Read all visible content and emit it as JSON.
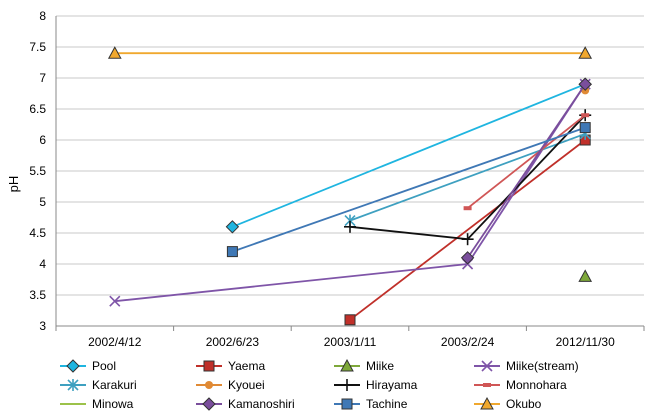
{
  "chart_data": {
    "type": "line",
    "title": "",
    "xlabel": "",
    "ylabel": "pH",
    "ylim": [
      3,
      8
    ],
    "yticks": [
      "3",
      "3.5",
      "4",
      "4.5",
      "5",
      "5.5",
      "6",
      "6.5",
      "7",
      "7.5",
      "8"
    ],
    "categories": [
      "2002/4/12",
      "2002/6/23",
      "2003/1/11",
      "2003/2/24",
      "2012/11/30"
    ],
    "grid": "horizontal",
    "legend": "bottom",
    "series": [
      {
        "name": "Pool",
        "color": "#1fb5e0",
        "marker": "diamond",
        "values": [
          null,
          4.6,
          null,
          null,
          6.9
        ]
      },
      {
        "name": "Yaema",
        "color": "#c0302a",
        "marker": "square",
        "values": [
          null,
          null,
          3.1,
          null,
          6.0
        ]
      },
      {
        "name": "Miike",
        "color": "#7ea83a",
        "marker": "triangle",
        "values": [
          null,
          null,
          null,
          null,
          3.8
        ]
      },
      {
        "name": "Miike(stream)",
        "color": "#7f55a8",
        "marker": "x",
        "values": [
          3.4,
          null,
          null,
          4.0,
          6.9
        ]
      },
      {
        "name": "Karakuri",
        "color": "#3ea0c0",
        "marker": "star",
        "values": [
          null,
          null,
          4.7,
          null,
          6.1
        ]
      },
      {
        "name": "Kyouei",
        "color": "#e08a35",
        "marker": "circle",
        "values": [
          null,
          null,
          null,
          null,
          6.8
        ]
      },
      {
        "name": "Hirayama",
        "color": "#111111",
        "marker": "plus",
        "values": [
          null,
          null,
          4.6,
          4.4,
          6.4
        ]
      },
      {
        "name": "Monnohara",
        "color": "#d05656",
        "marker": "dash",
        "values": [
          null,
          null,
          null,
          4.9,
          6.4
        ]
      },
      {
        "name": "Minowa",
        "color": "#9cc24a",
        "marker": "none",
        "values": [
          null,
          null,
          null,
          null,
          null
        ]
      },
      {
        "name": "Kamanoshiri",
        "color": "#7a4e9c",
        "marker": "diamond",
        "values": [
          null,
          null,
          null,
          4.1,
          6.9
        ]
      },
      {
        "name": "Tachine",
        "color": "#3f78b5",
        "marker": "square",
        "values": [
          null,
          4.2,
          null,
          null,
          6.2
        ]
      },
      {
        "name": "Okubo",
        "color": "#f0a82e",
        "marker": "triangle",
        "values": [
          7.4,
          null,
          null,
          null,
          7.4
        ]
      }
    ]
  }
}
